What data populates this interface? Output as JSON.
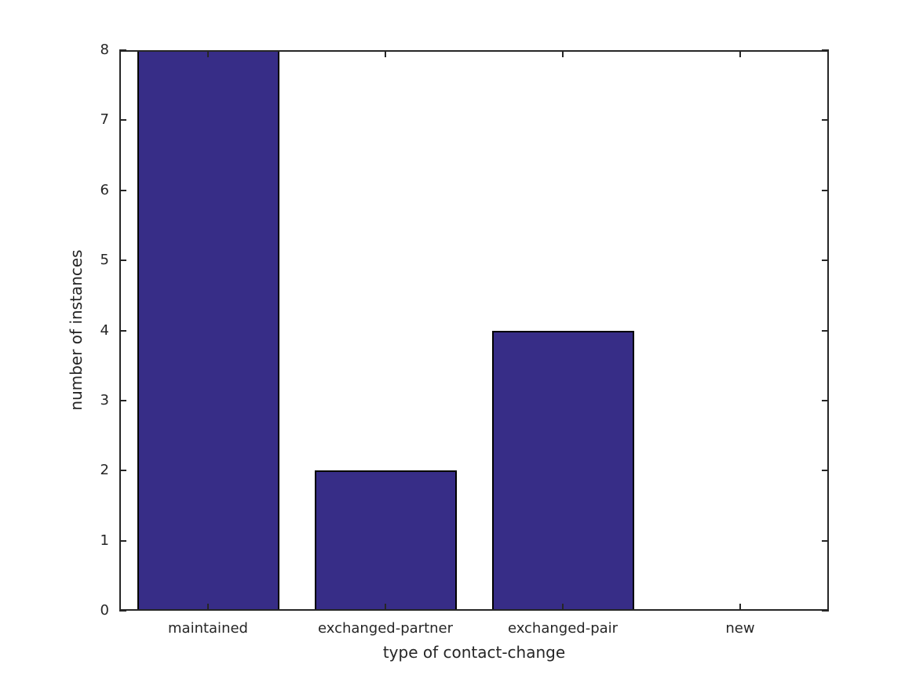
{
  "chart_data": {
    "type": "bar",
    "title": "",
    "categories": [
      "maintained",
      "exchanged-partner",
      "exchanged-pair",
      "new"
    ],
    "values": [
      8,
      2,
      4,
      0
    ],
    "xlabel": "type of contact-change",
    "ylabel": "number of instances",
    "ylim": [
      0,
      8
    ],
    "yticks": [
      0,
      1,
      2,
      3,
      4,
      5,
      6,
      7,
      8
    ],
    "grid": false,
    "legend": null,
    "bar_width_ratio": 0.8,
    "tick_direction": "in",
    "colors": {
      "bar_fill": "#372D87",
      "bar_edge": "#000000",
      "axis": "#262626",
      "text": "#262626",
      "background": "#FFFFFF"
    }
  }
}
